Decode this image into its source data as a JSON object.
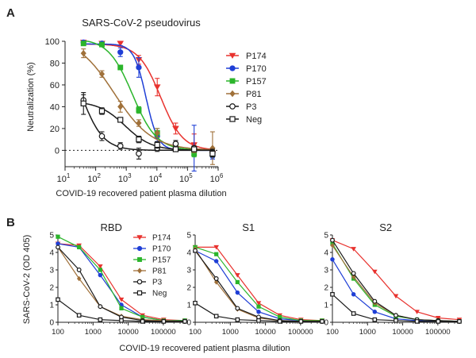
{
  "colors": {
    "P174": "#e8322e",
    "P170": "#1f3fd6",
    "P157": "#2bb52b",
    "P81": "#a0713a",
    "P3": "#1a1a1a",
    "Neg": "#1a1a1a"
  },
  "chart_data": [
    {
      "type": "line",
      "panel_label": "A",
      "title": "SARS-CoV-2 pseudovirus",
      "xlabel": "COVID-19 recovered patient plasma dilution",
      "ylabel": "Neutralization (%)",
      "xscale": "log",
      "xlim": [
        10,
        1000000
      ],
      "ylim": [
        -15,
        100
      ],
      "yticks": [
        "0",
        "20",
        "40",
        "60",
        "80",
        "100"
      ],
      "xtick_base": "10",
      "xtick_exponents": [
        "1",
        "2",
        "3",
        "4",
        "5",
        "6"
      ],
      "reference_line": 0,
      "legend_position": "right",
      "x": [
        40,
        160,
        640,
        2560,
        10240,
        40960,
        163840,
        655360
      ],
      "series": [
        {
          "name": "P174",
          "marker": "triangle-down",
          "values": [
            99,
            98,
            98,
            83,
            58,
            20,
            5,
            -3
          ],
          "errors": [
            0,
            1,
            2,
            4,
            8,
            5,
            10,
            3
          ]
        },
        {
          "name": "P170",
          "marker": "circle",
          "values": [
            99,
            98,
            90,
            76,
            13,
            3,
            2,
            -5
          ],
          "errors": [
            0,
            1,
            4,
            9,
            5,
            3,
            21,
            3
          ]
        },
        {
          "name": "P157",
          "marker": "square",
          "values": [
            98,
            97,
            76,
            37,
            16,
            4,
            -3,
            -3
          ],
          "errors": [
            1,
            1,
            2,
            3,
            4,
            2,
            3,
            3
          ]
        },
        {
          "name": "P81",
          "marker": "diamond",
          "values": [
            89,
            70,
            40,
            25,
            16,
            2,
            1,
            2
          ],
          "errors": [
            4,
            3,
            5,
            3,
            4,
            3,
            3,
            15
          ]
        },
        {
          "name": "P3",
          "marker": "circle-open",
          "values": [
            46,
            13,
            4,
            -3,
            2,
            6,
            2,
            -2
          ],
          "errors": [
            5,
            4,
            3,
            5,
            3,
            3,
            2,
            3
          ]
        },
        {
          "name": "Neg",
          "marker": "square-open",
          "values": [
            43,
            36,
            28,
            10,
            5,
            1,
            1,
            -3
          ],
          "errors": [
            10,
            3,
            2,
            3,
            3,
            2,
            2,
            3
          ]
        }
      ]
    },
    {
      "type": "line",
      "panel_label": "B",
      "ylabel": "SARS-CoV-2 (OD 405)",
      "xlabel": "COVID-19 recovered patient plasma dilution",
      "xscale": "log",
      "xlim": [
        100,
        409600
      ],
      "ylim": [
        0,
        5
      ],
      "yticks": [
        "0",
        "1",
        "2",
        "3",
        "4",
        "5"
      ],
      "xtick_values": [
        100,
        1000,
        10000,
        100000
      ],
      "xtick_labels": [
        "100",
        "1000",
        "10000",
        "100000"
      ],
      "x": [
        100,
        400,
        1600,
        6400,
        25600,
        102400,
        409600
      ],
      "legend_position": "inside top-right of RBD panel",
      "panels": [
        {
          "title": "RBD",
          "series": [
            {
              "name": "P174",
              "marker": "triangle-down",
              "values": [
                4.5,
                4.4,
                3.2,
                1.3,
                0.4,
                0.15,
                0.1
              ]
            },
            {
              "name": "P170",
              "marker": "circle",
              "values": [
                4.5,
                4.3,
                2.7,
                1.0,
                0.3,
                0.1,
                0.1
              ]
            },
            {
              "name": "P157",
              "marker": "square",
              "values": [
                4.9,
                4.3,
                3.0,
                0.8,
                0.3,
                0.1,
                0.1
              ]
            },
            {
              "name": "P81",
              "marker": "diamond",
              "values": [
                4.3,
                2.5,
                0.9,
                0.35,
                0.15,
                0.1,
                0.05
              ]
            },
            {
              "name": "P3",
              "marker": "circle-open",
              "values": [
                4.3,
                3.0,
                0.9,
                0.3,
                0.1,
                0.05,
                0.05
              ]
            },
            {
              "name": "Neg",
              "marker": "square-open",
              "values": [
                1.3,
                0.4,
                0.15,
                0.1,
                0.05,
                0.05,
                0.05
              ]
            }
          ]
        },
        {
          "title": "S1",
          "series": [
            {
              "name": "P174",
              "marker": "triangle-down",
              "values": [
                4.3,
                4.3,
                2.7,
                1.1,
                0.4,
                0.15,
                0.1
              ]
            },
            {
              "name": "P170",
              "marker": "circle",
              "values": [
                4.1,
                3.5,
                1.7,
                0.6,
                0.2,
                0.1,
                0.05
              ]
            },
            {
              "name": "P157",
              "marker": "square",
              "values": [
                4.3,
                3.9,
                2.3,
                0.9,
                0.3,
                0.1,
                0.1
              ]
            },
            {
              "name": "P81",
              "marker": "diamond",
              "values": [
                4.2,
                2.3,
                0.75,
                0.25,
                0.1,
                0.05,
                0.05
              ]
            },
            {
              "name": "P3",
              "marker": "circle-open",
              "values": [
                4.1,
                2.5,
                0.8,
                0.3,
                0.1,
                0.05,
                0.05
              ]
            },
            {
              "name": "Neg",
              "marker": "square-open",
              "values": [
                1.1,
                0.35,
                0.15,
                0.1,
                0.05,
                0.05,
                0.05
              ]
            }
          ]
        },
        {
          "title": "S2",
          "series": [
            {
              "name": "P174",
              "marker": "triangle-down",
              "values": [
                4.7,
                4.2,
                2.9,
                1.5,
                0.6,
                0.25,
                0.15
              ]
            },
            {
              "name": "P170",
              "marker": "circle",
              "values": [
                3.6,
                1.6,
                0.6,
                0.2,
                0.1,
                0.05,
                0.05
              ]
            },
            {
              "name": "P157",
              "marker": "square",
              "values": [
                4.5,
                2.5,
                1.0,
                0.35,
                0.15,
                0.1,
                0.05
              ]
            },
            {
              "name": "P81",
              "marker": "diamond",
              "values": [
                4.4,
                2.6,
                1.1,
                0.4,
                0.15,
                0.1,
                0.05
              ]
            },
            {
              "name": "P3",
              "marker": "circle-open",
              "values": [
                4.7,
                2.8,
                1.2,
                0.4,
                0.15,
                0.1,
                0.05
              ]
            },
            {
              "name": "Neg",
              "marker": "square-open",
              "values": [
                1.6,
                0.5,
                0.15,
                0.1,
                0.05,
                0.05,
                0.05
              ]
            }
          ]
        }
      ]
    }
  ]
}
